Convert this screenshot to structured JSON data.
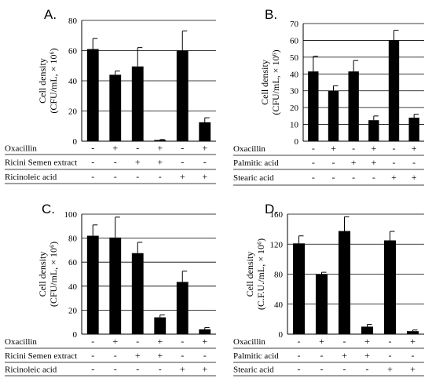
{
  "chart_data": [
    {
      "panel": "A.",
      "type": "bar",
      "ylabel_lines": [
        "Cell density",
        "(CFU/mL, × 10⁶)"
      ],
      "ylim": [
        0,
        80
      ],
      "yticks": [
        0,
        20,
        40,
        60,
        80
      ],
      "grid": true,
      "values": [
        61,
        44,
        49.5,
        0.8,
        60,
        12.5
      ],
      "errors": [
        7,
        2.5,
        12.5,
        0.3,
        13,
        3
      ],
      "conditions": [
        {
          "label": "Oxacillin",
          "signs": [
            "-",
            "+",
            "-",
            "+",
            "-",
            "+"
          ]
        },
        {
          "label": "Ricini Semen extract",
          "signs": [
            "-",
            "-",
            "+",
            "+",
            "-",
            "-"
          ]
        },
        {
          "label": "Ricinoleic acid",
          "signs": [
            "-",
            "-",
            "-",
            "-",
            "+",
            "+"
          ]
        }
      ]
    },
    {
      "panel": "B.",
      "type": "bar",
      "ylabel_lines": [
        "Cell density",
        "(CFU/mL, × 10⁶)"
      ],
      "ylim": [
        0,
        70
      ],
      "yticks": [
        0,
        10,
        20,
        30,
        40,
        50,
        60,
        70
      ],
      "grid": true,
      "values": [
        41.5,
        30,
        41.5,
        12.5,
        60,
        14
      ],
      "errors": [
        9,
        3,
        6.5,
        2.5,
        6,
        2
      ],
      "conditions": [
        {
          "label": "Oxacillin",
          "signs": [
            "-",
            "+",
            "-",
            "+",
            "-",
            "+"
          ]
        },
        {
          "label": "Palmitic acid",
          "signs": [
            "-",
            "-",
            "+",
            "+",
            "-",
            "-"
          ]
        },
        {
          "label": "Stearic acid",
          "signs": [
            "-",
            "-",
            "-",
            "-",
            "+",
            "+"
          ]
        }
      ]
    },
    {
      "panel": "C.",
      "type": "bar",
      "ylabel_lines": [
        "Cell density",
        "(CFU/mL, × 10⁶)"
      ],
      "ylim": [
        0,
        100
      ],
      "yticks": [
        0,
        20,
        40,
        60,
        80,
        100
      ],
      "grid": true,
      "values": [
        82,
        80.5,
        67.5,
        14,
        43.5,
        4
      ],
      "errors": [
        9,
        17,
        9,
        2,
        9,
        1.5
      ],
      "conditions": [
        {
          "label": "Oxacillin",
          "signs": [
            "-",
            "+",
            "-",
            "+",
            "-",
            "+"
          ]
        },
        {
          "label": "Ricini Semen extract",
          "signs": [
            "-",
            "-",
            "+",
            "+",
            "-",
            "-"
          ]
        },
        {
          "label": "Ricinoleic acid",
          "signs": [
            "-",
            "-",
            "-",
            "-",
            "+",
            "+"
          ]
        }
      ]
    },
    {
      "panel": "D.",
      "type": "bar",
      "ylabel_lines": [
        "Cell density",
        "(C.F.U./mL, × 10⁶)"
      ],
      "ylim": [
        0,
        160
      ],
      "yticks": [
        0,
        40,
        80,
        120,
        160
      ],
      "grid": true,
      "values": [
        121,
        79.5,
        137.5,
        10,
        125,
        4
      ],
      "errors": [
        10,
        3,
        19,
        3,
        12,
        1.5
      ],
      "conditions": [
        {
          "label": "Oxacillin",
          "signs": [
            "-",
            "+",
            "-",
            "+",
            "-",
            "+"
          ]
        },
        {
          "label": "Palmitic acid",
          "signs": [
            "-",
            "-",
            "+",
            "+",
            "-",
            "-"
          ]
        },
        {
          "label": "Stearic acid",
          "signs": [
            "-",
            "-",
            "-",
            "-",
            "+",
            "+"
          ]
        }
      ]
    }
  ]
}
